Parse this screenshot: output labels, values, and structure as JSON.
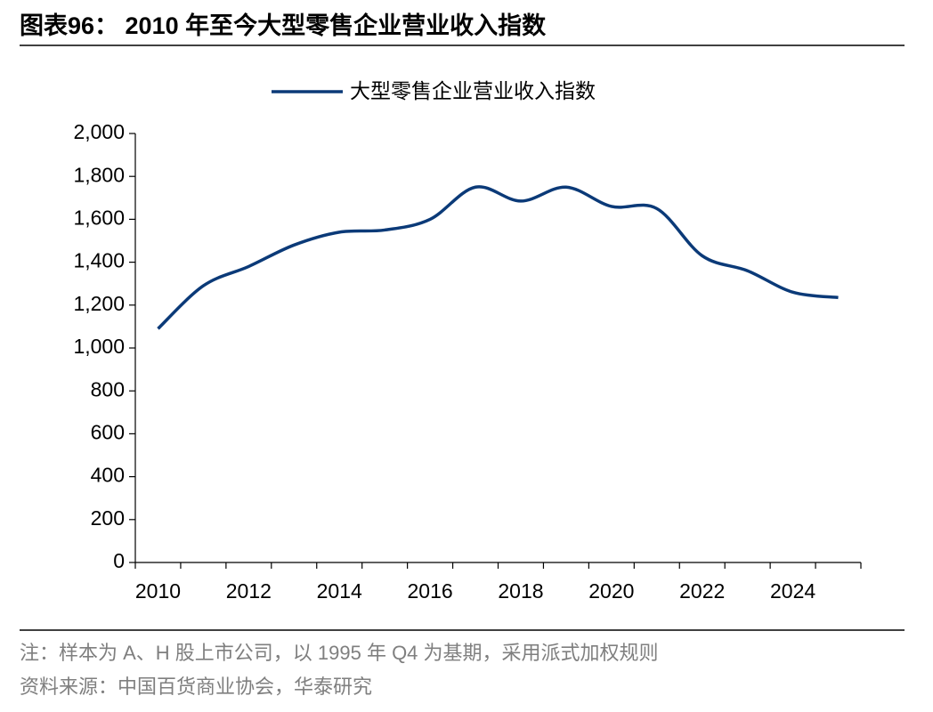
{
  "header": {
    "title": "图表96： 2010 年至今大型零售企业营业收入指数"
  },
  "chart_data": {
    "type": "line",
    "categories": [
      "2010",
      null,
      "2012",
      null,
      "2014",
      null,
      "2016",
      null,
      "2018",
      null,
      "2020",
      null,
      "2022",
      null,
      "2024",
      null
    ],
    "series": [
      {
        "name": "大型零售企业营业收入指数",
        "color": "#0b3a78",
        "values": [
          1090,
          1290,
          1380,
          1480,
          1540,
          1550,
          1600,
          1750,
          1685,
          1750,
          1660,
          1650,
          1430,
          1360,
          1260,
          1235
        ]
      }
    ],
    "ylim": [
      0,
      2000
    ],
    "yticks": [
      0,
      200,
      400,
      600,
      800,
      {
        "value": 1000,
        "label": "1,000"
      },
      {
        "value": 1200,
        "label": "1,200"
      },
      {
        "value": 1400,
        "label": "1,400"
      },
      {
        "value": 1600,
        "label": "1,600"
      },
      {
        "value": 1800,
        "label": "1,800"
      },
      {
        "value": 2000,
        "label": "2,000"
      }
    ],
    "legend": "top"
  },
  "notes": [
    "注：样本为 A、H 股上市公司，以 1995 年 Q4 为基期，采用派式加权规则",
    "资料来源：中国百货商业协会，华泰研究"
  ]
}
